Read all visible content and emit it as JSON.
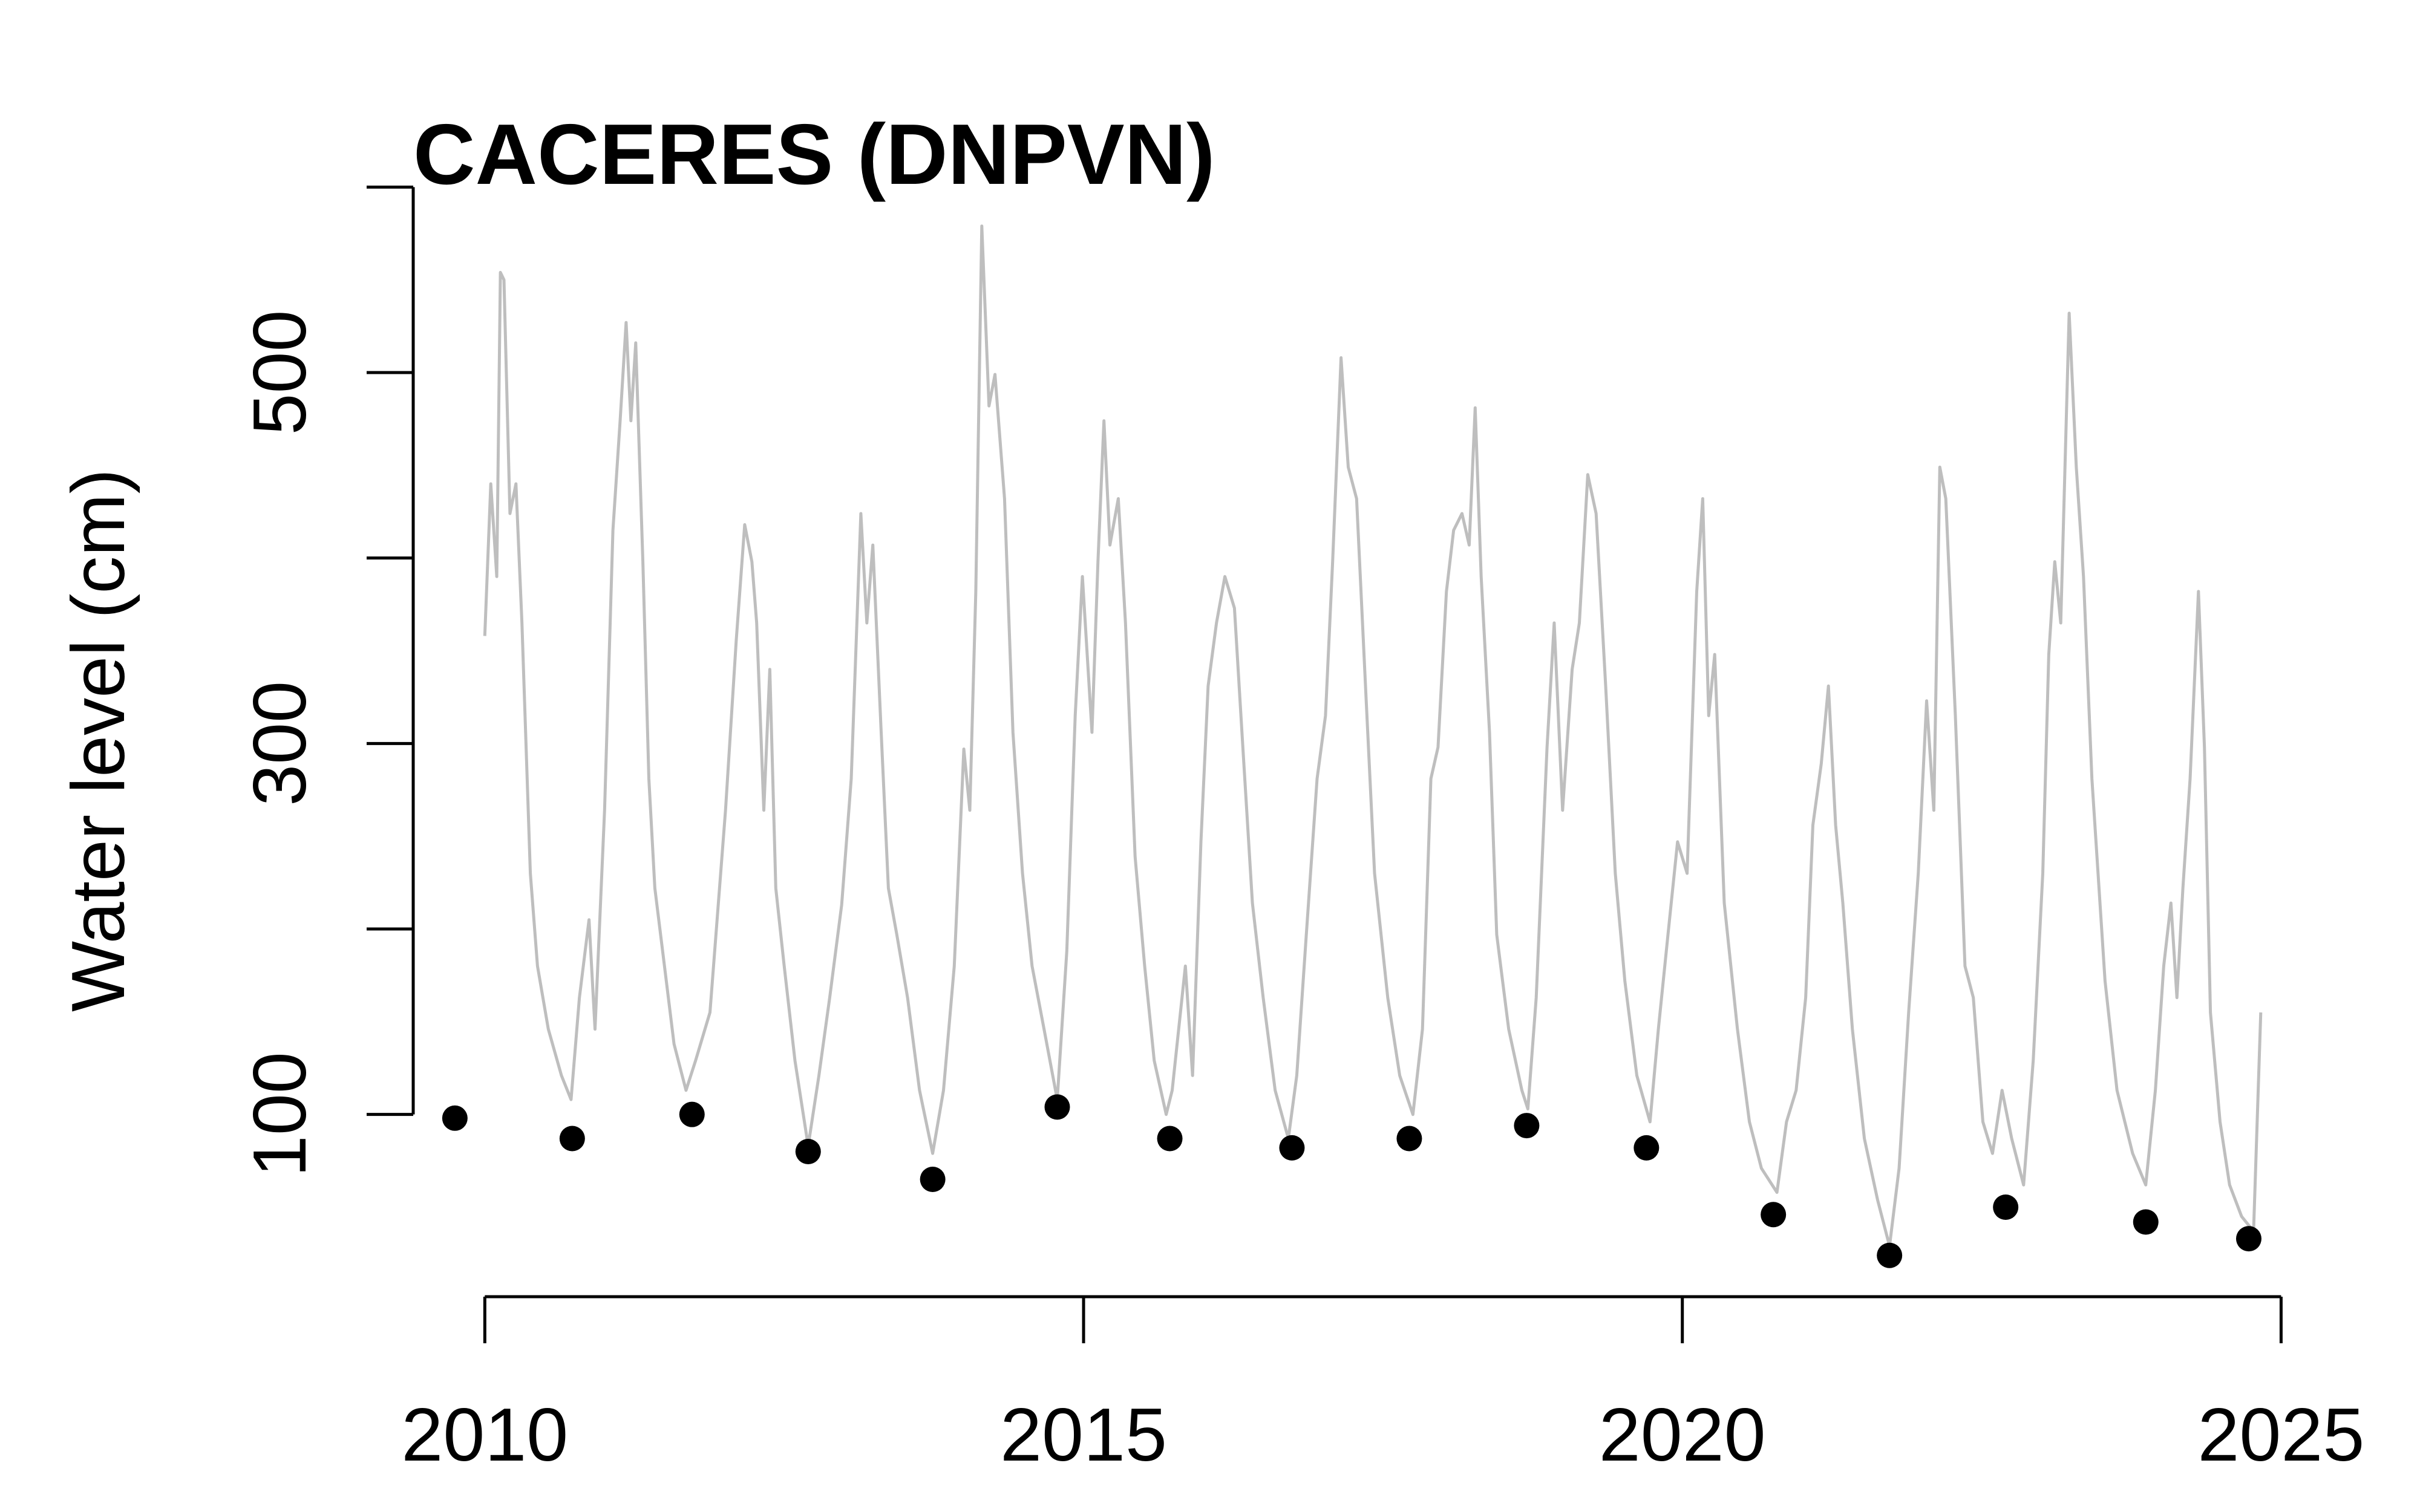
{
  "chart_data": {
    "type": "line",
    "title": "CACERES (DNPVN)",
    "ylabel": "Water level (cm)",
    "xlim": [
      2009.2,
      2025.2
    ],
    "ylim": [
      20,
      620
    ],
    "xticks": [
      2010,
      2015,
      2020,
      2025
    ],
    "yticks": [
      100,
      300,
      500
    ],
    "y_minor_ticks": [
      200,
      400,
      600
    ],
    "series": [
      {
        "type": "line",
        "color": "#bebebe",
        "x": [
          2010.0,
          2010.05,
          2010.1,
          2010.13,
          2010.16,
          2010.21,
          2010.26,
          2010.31,
          2010.38,
          2010.44,
          2010.53,
          2010.64,
          2010.72,
          2010.79,
          2010.87,
          2010.92,
          2011.0,
          2011.07,
          2011.13,
          2011.18,
          2011.22,
          2011.26,
          2011.32,
          2011.37,
          2011.42,
          2011.5,
          2011.58,
          2011.68,
          2011.76,
          2011.88,
          2012.01,
          2012.1,
          2012.17,
          2012.23,
          2012.27,
          2012.33,
          2012.38,
          2012.43,
          2012.5,
          2012.59,
          2012.7,
          2012.79,
          2012.88,
          2012.98,
          2013.06,
          2013.14,
          2013.19,
          2013.24,
          2013.31,
          2013.37,
          2013.44,
          2013.53,
          2013.63,
          2013.74,
          2013.83,
          2013.92,
          2014.0,
          2014.05,
          2014.1,
          2014.15,
          2014.21,
          2014.26,
          2014.34,
          2014.41,
          2014.49,
          2014.57,
          2014.67,
          2014.78,
          2014.86,
          2014.93,
          2014.99,
          2015.07,
          2015.12,
          2015.17,
          2015.22,
          2015.29,
          2015.35,
          2015.43,
          2015.51,
          2015.59,
          2015.69,
          2015.74,
          2015.85,
          2015.91,
          2015.98,
          2016.04,
          2016.11,
          2016.18,
          2016.26,
          2016.33,
          2016.41,
          2016.5,
          2016.6,
          2016.71,
          2016.78,
          2016.86,
          2016.95,
          2017.02,
          2017.08,
          2017.15,
          2017.21,
          2017.28,
          2017.36,
          2017.43,
          2017.54,
          2017.64,
          2017.75,
          2017.83,
          2017.9,
          2017.96,
          2018.03,
          2018.09,
          2018.16,
          2018.22,
          2018.27,
          2018.32,
          2018.39,
          2018.45,
          2018.55,
          2018.66,
          2018.71,
          2018.78,
          2018.87,
          2018.93,
          2019.0,
          2019.08,
          2019.14,
          2019.21,
          2019.28,
          2019.36,
          2019.44,
          2019.52,
          2019.62,
          2019.73,
          2019.8,
          2019.88,
          2019.96,
          2020.04,
          2020.12,
          2020.17,
          2020.22,
          2020.27,
          2020.35,
          2020.46,
          2020.56,
          2020.66,
          2020.79,
          2020.87,
          2020.95,
          2021.03,
          2021.09,
          2021.16,
          2021.22,
          2021.28,
          2021.34,
          2021.42,
          2021.52,
          2021.63,
          2021.73,
          2021.81,
          2021.89,
          2021.97,
          2022.04,
          2022.1,
          2022.15,
          2022.2,
          2022.28,
          2022.36,
          2022.43,
          2022.51,
          2022.59,
          2022.67,
          2022.75,
          2022.85,
          2022.93,
          2023.01,
          2023.06,
          2023.11,
          2023.16,
          2023.23,
          2023.29,
          2023.35,
          2023.42,
          2023.53,
          2023.63,
          2023.76,
          2023.87,
          2023.95,
          2024.02,
          2024.08,
          2024.13,
          2024.18,
          2024.24,
          2024.31,
          2024.36,
          2024.41,
          2024.49,
          2024.57,
          2024.67,
          2024.77,
          2024.83
        ],
        "values": [
          358,
          440,
          390,
          554,
          550,
          424,
          440,
          365,
          230,
          180,
          146,
          121,
          108,
          163,
          205,
          146,
          264,
          415,
          474,
          527,
          474,
          516,
          398,
          281,
          222,
          180,
          138,
          113,
          129,
          155,
          264,
          356,
          418,
          398,
          365,
          264,
          340,
          222,
          180,
          129,
          83,
          121,
          163,
          213,
          281,
          424,
          365,
          407,
          306,
          222,
          197,
          163,
          113,
          79,
          113,
          180,
          297,
          264,
          382,
          579,
          482,
          499,
          432,
          306,
          230,
          180,
          146,
          108,
          188,
          315,
          390,
          306,
          398,
          474,
          407,
          432,
          365,
          239,
          180,
          129,
          100,
          113,
          180,
          121,
          247,
          331,
          365,
          390,
          373,
          298,
          214,
          163,
          113,
          87,
          121,
          197,
          281,
          315,
          398,
          508,
          449,
          432,
          323,
          230,
          163,
          121,
          100,
          146,
          281,
          298,
          382,
          415,
          424,
          407,
          481,
          390,
          306,
          197,
          146,
          113,
          103,
          163,
          298,
          365,
          264,
          340,
          365,
          445,
          424,
          331,
          230,
          172,
          121,
          96,
          146,
          197,
          247,
          230,
          382,
          432,
          315,
          348,
          214,
          146,
          96,
          71,
          58,
          96,
          113,
          163,
          256,
          289,
          331,
          256,
          214,
          146,
          87,
          54,
          29,
          71,
          155,
          230,
          323,
          264,
          449,
          432,
          315,
          180,
          163,
          96,
          79,
          113,
          87,
          62,
          129,
          230,
          348,
          398,
          365,
          532,
          449,
          390,
          281,
          172,
          113,
          79,
          62,
          113,
          180,
          214,
          163,
          222,
          281,
          382,
          298,
          155,
          96,
          62,
          45,
          37,
          155
        ]
      },
      {
        "type": "scatter",
        "color": "#000000",
        "x": [
          2009.75,
          2010.73,
          2011.73,
          2012.7,
          2013.74,
          2014.78,
          2015.72,
          2016.74,
          2017.72,
          2018.7,
          2019.7,
          2020.76,
          2021.73,
          2022.7,
          2023.87,
          2024.73
        ],
        "values": [
          98,
          87,
          100,
          80,
          65,
          104,
          87,
          82,
          87,
          94,
          82,
          46,
          24,
          50,
          42,
          33
        ]
      }
    ]
  }
}
